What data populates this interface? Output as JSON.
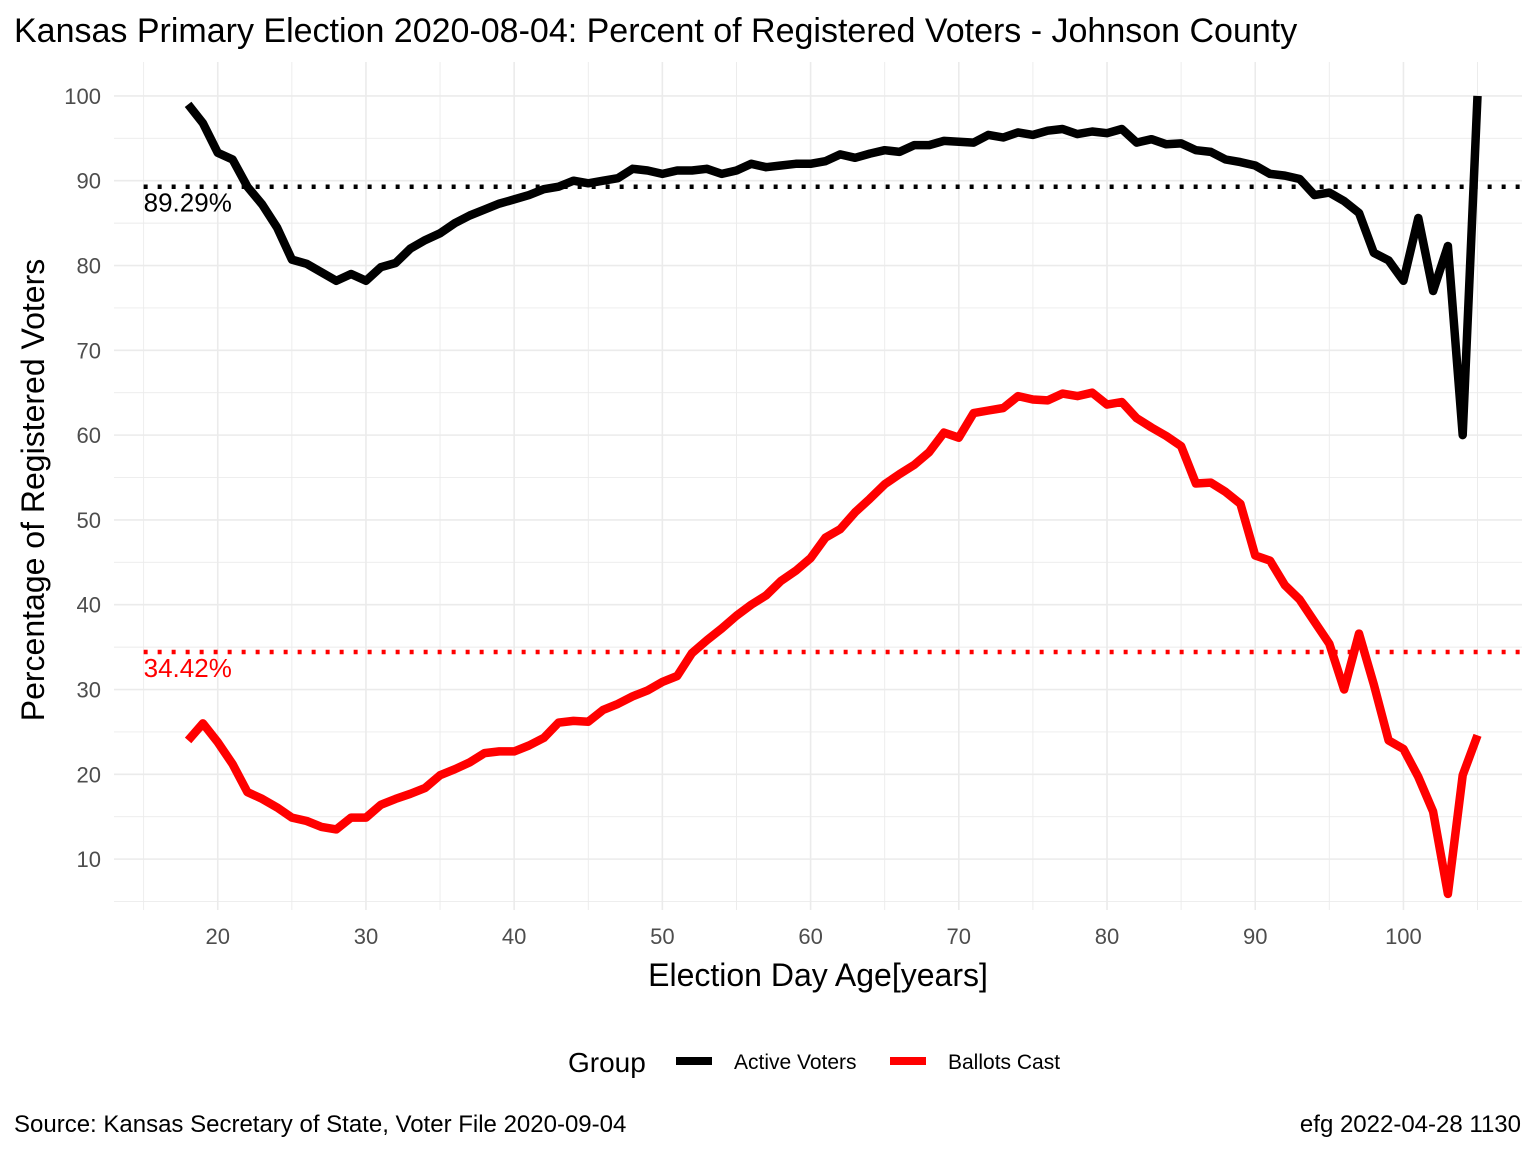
{
  "chart_data": {
    "type": "line",
    "title": "Kansas Primary Election 2020-08-04:  Percent of Registered Voters - Johnson County",
    "xlabel": "Election Day Age[years]",
    "ylabel": "Percentage of Registered Voters",
    "xlim": [
      13,
      108
    ],
    "ylim": [
      4,
      104
    ],
    "x_ticks": [
      "20",
      "30",
      "40",
      "50",
      "60",
      "70",
      "80",
      "90",
      "100"
    ],
    "y_ticks": [
      "10",
      "20",
      "30",
      "40",
      "50",
      "60",
      "70",
      "80",
      "90",
      "100"
    ],
    "grid": true,
    "legend": {
      "title": "Group",
      "placement": "bottom",
      "entries": [
        "Active Voters",
        "Ballots Cast"
      ]
    },
    "x": [
      18,
      19,
      20,
      21,
      22,
      23,
      24,
      25,
      26,
      27,
      28,
      29,
      30,
      31,
      32,
      33,
      34,
      35,
      36,
      37,
      38,
      39,
      40,
      41,
      42,
      43,
      44,
      45,
      46,
      47,
      48,
      49,
      50,
      51,
      52,
      53,
      54,
      55,
      56,
      57,
      58,
      59,
      60,
      61,
      62,
      63,
      64,
      65,
      66,
      67,
      68,
      69,
      70,
      71,
      72,
      73,
      74,
      75,
      76,
      77,
      78,
      79,
      80,
      81,
      82,
      83,
      84,
      85,
      86,
      87,
      88,
      89,
      90,
      91,
      92,
      93,
      94,
      95,
      96,
      97,
      98,
      99,
      100,
      101,
      102,
      103,
      104,
      105
    ],
    "series": [
      {
        "name": "Active Voters",
        "color": "#000000",
        "values": [
          99.0,
          96.8,
          93.3,
          92.5,
          89.3,
          87.2,
          84.5,
          80.7,
          80.2,
          79.2,
          78.2,
          79.0,
          78.2,
          79.8,
          80.3,
          82.0,
          83.0,
          83.8,
          85.0,
          85.9,
          86.6,
          87.3,
          87.8,
          88.3,
          89.0,
          89.3,
          90.0,
          89.7,
          90.0,
          90.3,
          91.4,
          91.2,
          90.8,
          91.2,
          91.2,
          91.4,
          90.8,
          91.2,
          92.0,
          91.6,
          91.8,
          92.0,
          92.0,
          92.3,
          93.1,
          92.7,
          93.2,
          93.6,
          93.4,
          94.2,
          94.2,
          94.7,
          94.6,
          94.5,
          95.4,
          95.1,
          95.7,
          95.4,
          95.9,
          96.1,
          95.5,
          95.8,
          95.6,
          96.1,
          94.5,
          94.9,
          94.3,
          94.4,
          93.6,
          93.4,
          92.5,
          92.2,
          91.8,
          90.8,
          90.6,
          90.2,
          88.3,
          88.6,
          87.6,
          86.2,
          81.5,
          80.6,
          78.2,
          85.6,
          77.0,
          82.3,
          60.0,
          100.0
        ]
      },
      {
        "name": "Ballots Cast",
        "color": "#ff0000",
        "values": [
          24.0,
          26.0,
          23.8,
          21.2,
          17.9,
          17.1,
          16.1,
          14.9,
          14.5,
          13.8,
          13.5,
          14.9,
          14.9,
          16.4,
          17.1,
          17.7,
          18.4,
          19.9,
          20.6,
          21.4,
          22.5,
          22.7,
          22.7,
          23.4,
          24.3,
          26.1,
          26.3,
          26.2,
          27.6,
          28.3,
          29.2,
          29.9,
          30.9,
          31.6,
          34.3,
          35.8,
          37.2,
          38.7,
          40.0,
          41.1,
          42.8,
          44.0,
          45.5,
          47.9,
          48.9,
          50.9,
          52.5,
          54.2,
          55.4,
          56.5,
          58.0,
          60.3,
          59.7,
          62.6,
          62.9,
          63.2,
          64.6,
          64.2,
          64.1,
          64.9,
          64.6,
          65.0,
          63.6,
          63.9,
          62.0,
          60.9,
          59.9,
          58.7,
          54.3,
          54.4,
          53.3,
          51.9,
          45.8,
          45.2,
          42.3,
          40.6,
          38.0,
          35.4,
          30.0,
          36.6,
          30.6,
          24.0,
          23.0,
          19.7,
          15.6,
          5.9,
          19.9,
          24.6
        ]
      }
    ],
    "reference_lines": [
      {
        "group": "Active Voters",
        "value": 89.29,
        "label": "89.29%",
        "color": "#000000"
      },
      {
        "group": "Ballots Cast",
        "value": 34.42,
        "label": "34.42%",
        "color": "#ff0000"
      }
    ]
  },
  "caption_left": "Source:  Kansas Secretary of State, Voter File  2020-09-04",
  "caption_right": "efg 2022-04-28 1130"
}
